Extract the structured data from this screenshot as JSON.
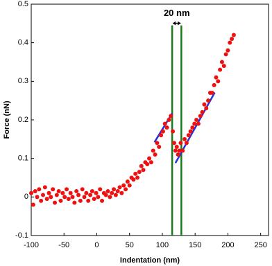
{
  "chart_data": {
    "type": "scatter",
    "x_label": "Indentation (nm)",
    "y_label": "Force (nN)",
    "color": "#ee1111",
    "xlim": [
      -100,
      262
    ],
    "ylim": [
      -0.1,
      0.5
    ],
    "xticks": [
      -100,
      -50,
      0,
      50,
      100,
      150,
      200,
      250
    ],
    "yticks": [
      -0.1,
      0,
      0.1,
      0.2,
      0.3,
      0.4,
      0.5
    ],
    "x": [
      -100,
      -97,
      -94,
      -91,
      -88,
      -85,
      -82,
      -79,
      -76,
      -73,
      -70,
      -67,
      -64,
      -61,
      -58,
      -55,
      -52,
      -49,
      -46,
      -43,
      -40,
      -37,
      -34,
      -31,
      -28,
      -25,
      -22,
      -19,
      -16,
      -13,
      -10,
      -7,
      -4,
      -1,
      2,
      5,
      8,
      11,
      14,
      17,
      20,
      23,
      26,
      29,
      32,
      35,
      38,
      41,
      44,
      47,
      50,
      53,
      56,
      59,
      62,
      65,
      68,
      71,
      74,
      77,
      80,
      83,
      86,
      89,
      92,
      95,
      98,
      101,
      104,
      107,
      110,
      113,
      116,
      118,
      120,
      122,
      124,
      126,
      128,
      131,
      134,
      137,
      140,
      143,
      146,
      149,
      152,
      155,
      158,
      161,
      164,
      167,
      170,
      173,
      176,
      179,
      182,
      185,
      188,
      191,
      194,
      197,
      200,
      203,
      206,
      209
    ],
    "values": [
      0.01,
      -0.02,
      0.015,
      0.0,
      0.02,
      -0.01,
      0.005,
      0.025,
      -0.005,
      0.01,
      0.0,
      0.02,
      -0.015,
      0.005,
      0.015,
      -0.01,
      0.01,
      0.0,
      0.02,
      -0.005,
      0.01,
      0.0,
      -0.015,
      0.015,
      0.005,
      -0.01,
      0.02,
      0.0,
      0.01,
      -0.01,
      0.005,
      0.015,
      -0.005,
      0.01,
      0.0,
      0.02,
      -0.01,
      0.01,
      0.005,
      0.015,
      0.0,
      0.01,
      0.02,
      0.005,
      0.015,
      0.025,
      0.01,
      0.03,
      0.02,
      0.04,
      0.03,
      0.05,
      0.045,
      0.06,
      0.05,
      0.065,
      0.08,
      0.07,
      0.09,
      0.085,
      0.1,
      0.09,
      0.12,
      0.11,
      0.14,
      0.13,
      0.16,
      0.17,
      0.19,
      0.18,
      0.2,
      0.21,
      0.17,
      0.14,
      0.12,
      0.13,
      0.11,
      0.12,
      0.14,
      0.12,
      0.15,
      0.14,
      0.16,
      0.17,
      0.18,
      0.19,
      0.2,
      0.19,
      0.21,
      0.22,
      0.24,
      0.23,
      0.25,
      0.27,
      0.27,
      0.29,
      0.31,
      0.3,
      0.33,
      0.35,
      0.34,
      0.37,
      0.38,
      0.4,
      0.41,
      0.42
    ],
    "lines": [
      {
        "color": "#1a7a1a",
        "x": [
          115,
          115
        ],
        "y": [
          -0.1,
          0.445
        ]
      },
      {
        "color": "#1a7a1a",
        "x": [
          129,
          129
        ],
        "y": [
          -0.1,
          0.445
        ]
      },
      {
        "color": "#2233dd",
        "x": [
          88,
          115
        ],
        "y": [
          0.142,
          0.217
        ]
      },
      {
        "color": "#2233dd",
        "x": [
          120,
          180
        ],
        "y": [
          0.088,
          0.271
        ]
      }
    ],
    "annotation": "20 nm"
  }
}
